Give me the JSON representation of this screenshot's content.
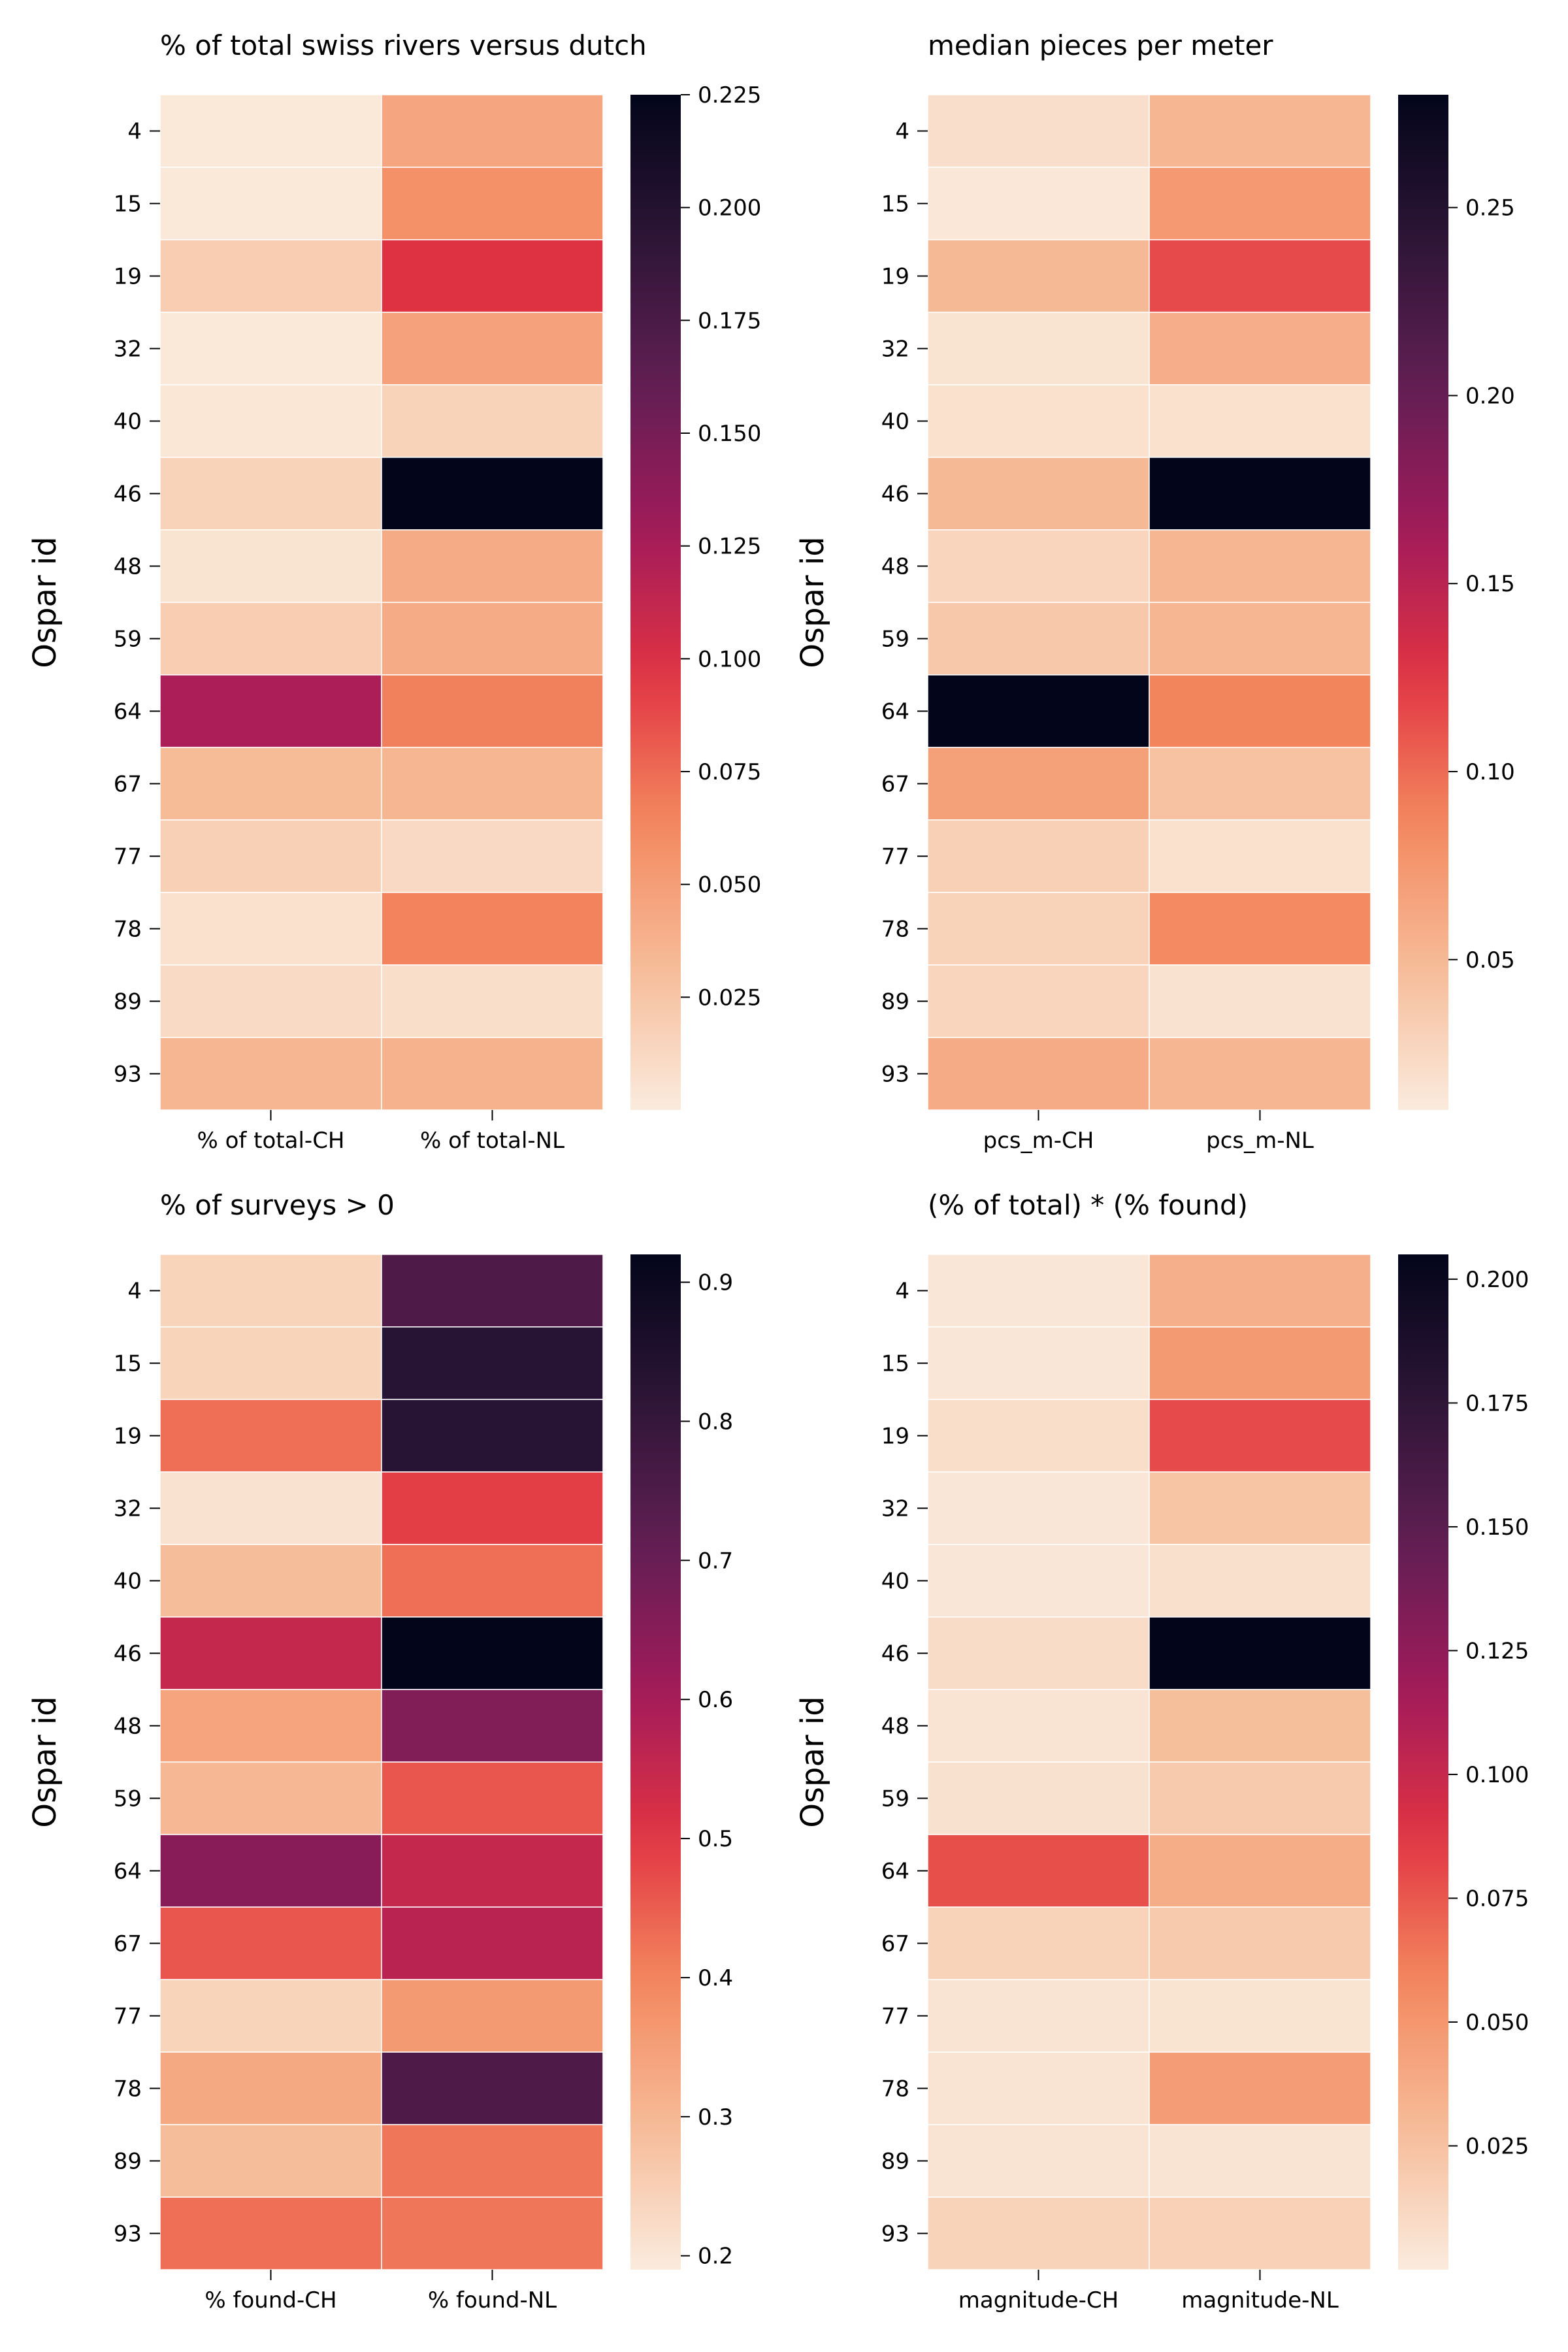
{
  "chart_data": [
    {
      "type": "heatmap",
      "title": "% of total swiss rivers versus dutch",
      "ylabel": "Ospar id",
      "rows": [
        "4",
        "15",
        "19",
        "32",
        "40",
        "46",
        "48",
        "59",
        "64",
        "67",
        "77",
        "78",
        "89",
        "93"
      ],
      "columns": [
        "% of total-CH",
        "% of total-NL"
      ],
      "values": [
        [
          0.002,
          0.045
        ],
        [
          0.002,
          0.058
        ],
        [
          0.02,
          0.098
        ],
        [
          0.002,
          0.048
        ],
        [
          0.003,
          0.016
        ],
        [
          0.016,
          0.225
        ],
        [
          0.005,
          0.042
        ],
        [
          0.02,
          0.042
        ],
        [
          0.123,
          0.067
        ],
        [
          0.032,
          0.035
        ],
        [
          0.018,
          0.012
        ],
        [
          0.007,
          0.066
        ],
        [
          0.011,
          0.009
        ],
        [
          0.035,
          0.038
        ]
      ],
      "vmin": 0,
      "vmax": 0.225,
      "colorbar_ticks": [
        "0.025",
        "0.050",
        "0.075",
        "0.100",
        "0.125",
        "0.150",
        "0.175",
        "0.200",
        "0.225"
      ],
      "colorbar_tick_values": [
        0.025,
        0.05,
        0.075,
        0.1,
        0.125,
        0.15,
        0.175,
        0.2,
        0.225
      ]
    },
    {
      "type": "heatmap",
      "title": "median pieces per meter",
      "ylabel": "Ospar id",
      "rows": [
        "4",
        "15",
        "19",
        "32",
        "40",
        "46",
        "48",
        "59",
        "64",
        "67",
        "77",
        "78",
        "89",
        "93"
      ],
      "columns": [
        "pcs_m-CH",
        "pcs_m-NL"
      ],
      "values": [
        [
          0.02,
          0.052
        ],
        [
          0.013,
          0.074
        ],
        [
          0.05,
          0.115
        ],
        [
          0.016,
          0.058
        ],
        [
          0.018,
          0.018
        ],
        [
          0.05,
          0.28
        ],
        [
          0.028,
          0.052
        ],
        [
          0.038,
          0.052
        ],
        [
          0.28,
          0.088
        ],
        [
          0.068,
          0.043
        ],
        [
          0.032,
          0.018
        ],
        [
          0.03,
          0.085
        ],
        [
          0.028,
          0.017
        ],
        [
          0.06,
          0.052
        ]
      ],
      "vmin": 0.01,
      "vmax": 0.28,
      "colorbar_ticks": [
        "0.05",
        "0.10",
        "0.15",
        "0.20",
        "0.25"
      ],
      "colorbar_tick_values": [
        0.05,
        0.1,
        0.15,
        0.2,
        0.25
      ]
    },
    {
      "type": "heatmap",
      "title": "% of surveys > 0",
      "ylabel": "Ospar id",
      "rows": [
        "4",
        "15",
        "19",
        "32",
        "40",
        "46",
        "48",
        "59",
        "64",
        "67",
        "77",
        "78",
        "89",
        "93"
      ],
      "columns": [
        "% found-CH",
        "% found-NL"
      ],
      "values": [
        [
          0.24,
          0.75
        ],
        [
          0.24,
          0.83
        ],
        [
          0.43,
          0.83
        ],
        [
          0.21,
          0.49
        ],
        [
          0.29,
          0.43
        ],
        [
          0.55,
          0.92
        ],
        [
          0.34,
          0.66
        ],
        [
          0.3,
          0.46
        ],
        [
          0.65,
          0.55
        ],
        [
          0.46,
          0.57
        ],
        [
          0.24,
          0.36
        ],
        [
          0.33,
          0.75
        ],
        [
          0.29,
          0.42
        ],
        [
          0.43,
          0.42
        ]
      ],
      "vmin": 0.19,
      "vmax": 0.92,
      "colorbar_ticks": [
        "0.2",
        "0.3",
        "0.4",
        "0.5",
        "0.6",
        "0.7",
        "0.8",
        "0.9"
      ],
      "colorbar_tick_values": [
        0.2,
        0.3,
        0.4,
        0.5,
        0.6,
        0.7,
        0.8,
        0.9
      ]
    },
    {
      "type": "heatmap",
      "title": "(% of total) * (% found)",
      "ylabel": "Ospar id",
      "rows": [
        "4",
        "15",
        "19",
        "32",
        "40",
        "46",
        "48",
        "59",
        "64",
        "67",
        "77",
        "78",
        "89",
        "93"
      ],
      "columns": [
        "magnitude-CH",
        "magnitude-NL"
      ],
      "values": [
        [
          0.003,
          0.036
        ],
        [
          0.003,
          0.048
        ],
        [
          0.008,
          0.08
        ],
        [
          0.003,
          0.024
        ],
        [
          0.003,
          0.007
        ],
        [
          0.009,
          0.205
        ],
        [
          0.004,
          0.027
        ],
        [
          0.006,
          0.02
        ],
        [
          0.078,
          0.037
        ],
        [
          0.015,
          0.02
        ],
        [
          0.004,
          0.005
        ],
        [
          0.004,
          0.047
        ],
        [
          0.004,
          0.004
        ],
        [
          0.015,
          0.016
        ]
      ],
      "vmin": 0,
      "vmax": 0.205,
      "colorbar_ticks": [
        "0.025",
        "0.050",
        "0.075",
        "0.100",
        "0.125",
        "0.150",
        "0.175",
        "0.200"
      ],
      "colorbar_tick_values": [
        0.025,
        0.05,
        0.075,
        0.1,
        0.125,
        0.15,
        0.175,
        0.2
      ]
    }
  ],
  "colormap_stops": [
    "#faebdd",
    "#f6bb97",
    "#f3875e",
    "#e13342",
    "#a11a5b",
    "#611f53",
    "#2d1537",
    "#03051a"
  ]
}
